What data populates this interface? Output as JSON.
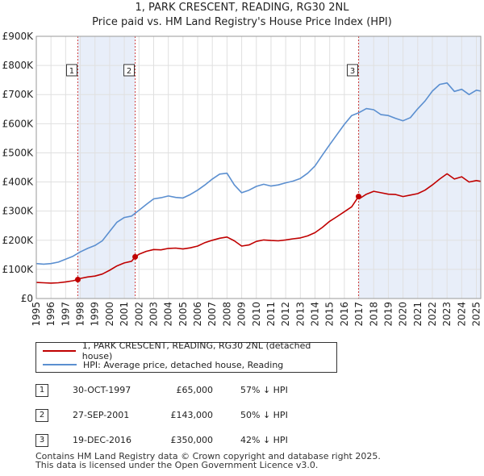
{
  "title_line1": "1, PARK CRESCENT, READING, RG30 2NL",
  "title_line2": "Price paid vs. HM Land Registry's House Price Index (HPI)",
  "colors": {
    "property_line": "#c00000",
    "hpi_line": "#5b8fd0",
    "shade": "#e8eef9",
    "marker_border": "#c00000",
    "grid": "#e0e0e0"
  },
  "chart_data": {
    "type": "line",
    "title": "1, PARK CRESCENT, READING, RG30 2NL",
    "subtitle": "Price paid vs. HM Land Registry's House Price Index (HPI)",
    "xlabel": "",
    "ylabel": "",
    "xlim": [
      1995.0,
      2025.3
    ],
    "ylim": [
      0,
      900000
    ],
    "x_ticks": [
      1995,
      1996,
      1997,
      1998,
      1999,
      2000,
      2001,
      2002,
      2003,
      2004,
      2005,
      2006,
      2007,
      2008,
      2009,
      2010,
      2011,
      2012,
      2013,
      2014,
      2015,
      2016,
      2017,
      2018,
      2019,
      2020,
      2021,
      2022,
      2023,
      2024,
      2025
    ],
    "y_ticks": [
      0,
      100000,
      200000,
      300000,
      400000,
      500000,
      600000,
      700000,
      800000,
      900000
    ],
    "y_tick_labels": [
      "£0",
      "£100K",
      "£200K",
      "£300K",
      "£400K",
      "£500K",
      "£600K",
      "£700K",
      "£800K",
      "£900K"
    ],
    "grid": true,
    "shaded_spans": [
      [
        1997.83,
        2001.74
      ],
      [
        2016.97,
        2025.3
      ]
    ],
    "series": [
      {
        "name": "1, PARK CRESCENT, READING, RG30 2NL (detached house)",
        "color": "#c00000",
        "x": [
          1995.0,
          1995.5,
          1996.0,
          1996.5,
          1997.0,
          1997.5,
          1997.83,
          1998.0,
          1998.5,
          1999.0,
          1999.5,
          2000.0,
          2000.5,
          2001.0,
          2001.5,
          2001.74,
          2002.0,
          2002.5,
          2003.0,
          2003.5,
          2004.0,
          2004.5,
          2005.0,
          2005.5,
          2006.0,
          2006.5,
          2007.0,
          2007.5,
          2008.0,
          2008.5,
          2009.0,
          2009.5,
          2010.0,
          2010.5,
          2011.0,
          2011.5,
          2012.0,
          2012.5,
          2013.0,
          2013.5,
          2014.0,
          2014.5,
          2015.0,
          2015.5,
          2016.0,
          2016.5,
          2016.97,
          2017.0,
          2017.5,
          2018.0,
          2018.5,
          2019.0,
          2019.5,
          2020.0,
          2020.5,
          2021.0,
          2021.5,
          2022.0,
          2022.5,
          2023.0,
          2023.5,
          2024.0,
          2024.5,
          2025.0,
          2025.3
        ],
        "values": [
          55000,
          54000,
          53000,
          54000,
          57000,
          61000,
          65000,
          69000,
          74000,
          77000,
          84000,
          97000,
          112000,
          122000,
          128000,
          143000,
          152000,
          162000,
          168000,
          167000,
          172000,
          173000,
          170000,
          174000,
          180000,
          192000,
          200000,
          207000,
          211000,
          198000,
          180000,
          184000,
          196000,
          201000,
          199000,
          198000,
          201000,
          205000,
          208000,
          215000,
          226000,
          244000,
          265000,
          281000,
          298000,
          315000,
          350000,
          342000,
          358000,
          368000,
          363000,
          358000,
          357000,
          350000,
          355000,
          360000,
          372000,
          390000,
          410000,
          428000,
          410000,
          418000,
          400000,
          405000,
          402000
        ]
      },
      {
        "name": "HPI: Average price, detached house, Reading",
        "color": "#5b8fd0",
        "x": [
          1995.0,
          1995.5,
          1996.0,
          1996.5,
          1997.0,
          1997.5,
          1998.0,
          1998.5,
          1999.0,
          1999.5,
          2000.0,
          2000.5,
          2001.0,
          2001.5,
          2002.0,
          2002.5,
          2003.0,
          2003.5,
          2004.0,
          2004.5,
          2005.0,
          2005.5,
          2006.0,
          2006.5,
          2007.0,
          2007.5,
          2008.0,
          2008.5,
          2009.0,
          2009.5,
          2010.0,
          2010.5,
          2011.0,
          2011.5,
          2012.0,
          2012.5,
          2013.0,
          2013.5,
          2014.0,
          2014.5,
          2015.0,
          2015.5,
          2016.0,
          2016.5,
          2017.0,
          2017.5,
          2018.0,
          2018.5,
          2019.0,
          2019.5,
          2020.0,
          2020.5,
          2021.0,
          2021.5,
          2022.0,
          2022.5,
          2023.0,
          2023.5,
          2024.0,
          2024.5,
          2025.0,
          2025.3
        ],
        "values": [
          120000,
          118000,
          120000,
          125000,
          135000,
          145000,
          160000,
          172000,
          182000,
          198000,
          230000,
          262000,
          278000,
          283000,
          303000,
          323000,
          342000,
          346000,
          352000,
          347000,
          345000,
          357000,
          372000,
          390000,
          410000,
          427000,
          430000,
          390000,
          363000,
          372000,
          385000,
          392000,
          386000,
          390000,
          397000,
          403000,
          412000,
          430000,
          455000,
          492000,
          528000,
          563000,
          598000,
          628000,
          638000,
          652000,
          648000,
          631000,
          628000,
          618000,
          610000,
          621000,
          651000,
          678000,
          712000,
          735000,
          740000,
          711000,
          718000,
          700000,
          715000,
          712000
        ]
      }
    ],
    "markers": [
      {
        "label": "1",
        "x": 1997.83,
        "y": 65000
      },
      {
        "label": "2",
        "x": 2001.74,
        "y": 143000
      },
      {
        "label": "3",
        "x": 2016.97,
        "y": 350000
      }
    ]
  },
  "legend": {
    "property_label": "1, PARK CRESCENT, READING, RG30 2NL (detached house)",
    "hpi_label": "HPI: Average price, detached house, Reading"
  },
  "sales": [
    {
      "num": "1",
      "date": "30-OCT-1997",
      "price": "£65,000",
      "hpi": "57% ↓ HPI"
    },
    {
      "num": "2",
      "date": "27-SEP-2001",
      "price": "£143,000",
      "hpi": "50% ↓ HPI"
    },
    {
      "num": "3",
      "date": "19-DEC-2016",
      "price": "£350,000",
      "hpi": "42% ↓ HPI"
    }
  ],
  "footer": {
    "line1": "Contains HM Land Registry data © Crown copyright and database right 2025.",
    "line2": "This data is licensed under the Open Government Licence v3.0."
  }
}
